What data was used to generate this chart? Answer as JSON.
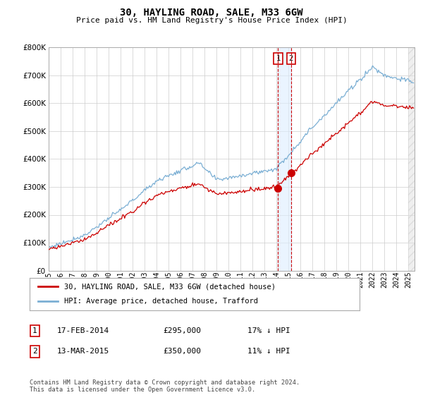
{
  "title": "30, HAYLING ROAD, SALE, M33 6GW",
  "subtitle": "Price paid vs. HM Land Registry's House Price Index (HPI)",
  "ytick_values": [
    0,
    100000,
    200000,
    300000,
    400000,
    500000,
    600000,
    700000,
    800000
  ],
  "ylim": [
    0,
    800000
  ],
  "xlim_start": 1995.0,
  "xlim_end": 2025.5,
  "hpi_color": "#7bafd4",
  "price_color": "#cc0000",
  "vline_color": "#cc0000",
  "marker_color": "#cc0000",
  "transaction1_year": 2014.125,
  "transaction1_value": 295000,
  "transaction2_year": 2015.208,
  "transaction2_value": 350000,
  "legend_label1": "30, HAYLING ROAD, SALE, M33 6GW (detached house)",
  "legend_label2": "HPI: Average price, detached house, Trafford",
  "table_row1": [
    "1",
    "17-FEB-2014",
    "£295,000",
    "17% ↓ HPI"
  ],
  "table_row2": [
    "2",
    "13-MAR-2015",
    "£350,000",
    "11% ↓ HPI"
  ],
  "footer": "Contains HM Land Registry data © Crown copyright and database right 2024.\nThis data is licensed under the Open Government Licence v3.0.",
  "background_color": "#ffffff",
  "grid_color": "#cccccc",
  "shade_color": "#ddeeff"
}
